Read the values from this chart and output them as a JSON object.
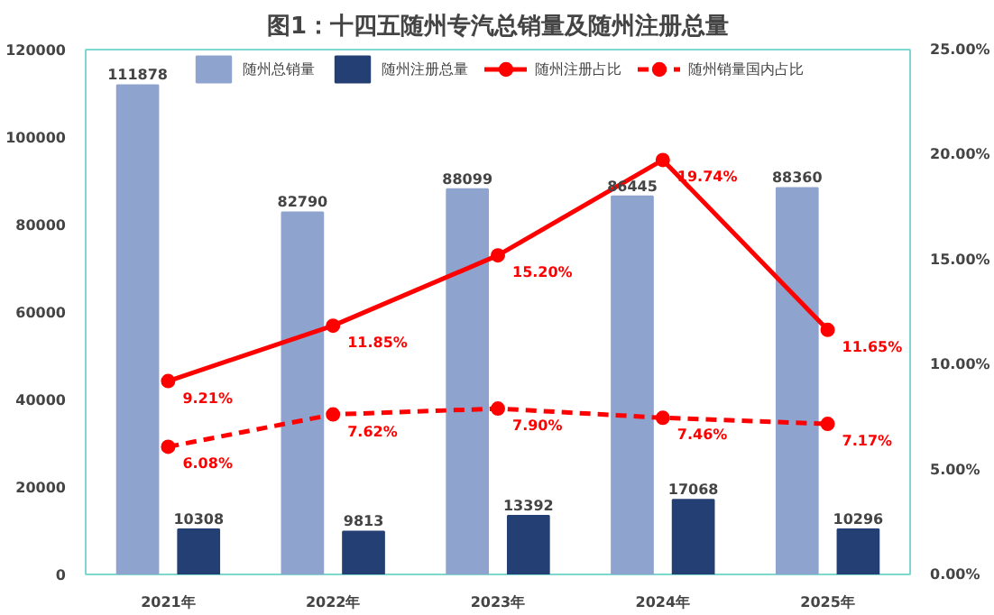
{
  "chart_data": {
    "type": "bar",
    "title": "图1：十四五随州专汽总销量及随州注册总量",
    "categories": [
      "2021年",
      "2022年",
      "2023年",
      "2024年",
      "2025年"
    ],
    "series": [
      {
        "name": "随州总销量",
        "color": "#8fa3cf",
        "values": [
          111878,
          82790,
          88099,
          86445,
          88360
        ]
      },
      {
        "name": "随州注册总量",
        "color": "#243f73",
        "values": [
          10308,
          9813,
          13392,
          17068,
          10296
        ]
      },
      {
        "name": "随州注册占比",
        "type": "line",
        "axis": "y2",
        "color": "#ff0000",
        "marker": "circle",
        "line_style": "solid",
        "values": [
          9.21,
          11.85,
          15.2,
          19.74,
          11.65
        ],
        "value_labels": [
          "9.21%",
          "11.85%",
          "15.20%",
          "19.74%",
          "11.65%"
        ]
      },
      {
        "name": "随州销量国内占比",
        "type": "line",
        "axis": "y2",
        "color": "#ff0000",
        "marker": "circle",
        "line_style": "dashed",
        "values": [
          6.08,
          7.62,
          7.9,
          7.46,
          7.17
        ],
        "value_labels": [
          "6.08%",
          "7.62%",
          "7.90%",
          "7.46%",
          "7.17%"
        ]
      }
    ],
    "ylim": [
      0,
      120000
    ],
    "yticks": [
      0,
      20000,
      40000,
      60000,
      80000,
      100000,
      120000
    ],
    "y2lim": [
      0,
      25
    ],
    "y2ticks": [
      {
        "value": 0,
        "label": "0.00%"
      },
      {
        "value": 5,
        "label": "5.00%"
      },
      {
        "value": 10,
        "label": "10.00%"
      },
      {
        "value": 15,
        "label": "15.00%"
      },
      {
        "value": 20,
        "label": "20.00%"
      },
      {
        "value": 25,
        "label": "25.00%"
      }
    ],
    "data_labels": true,
    "grid": false,
    "legend": "top"
  }
}
